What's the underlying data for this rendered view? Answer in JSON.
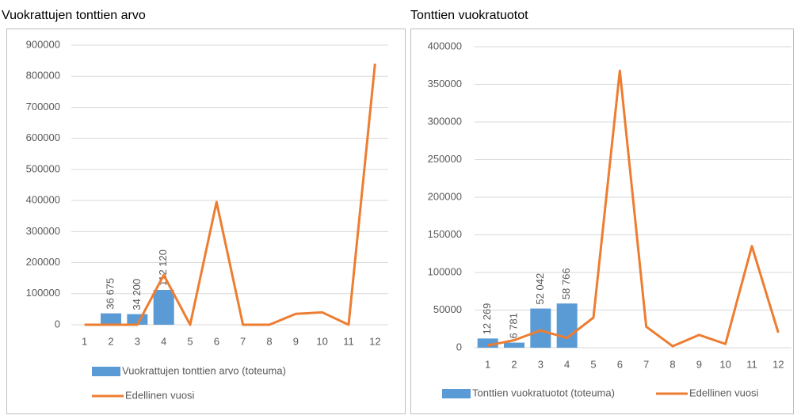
{
  "chart_data": [
    {
      "type": "bar_line",
      "title": "Vuokrattujen tonttien arvo",
      "categories": [
        1,
        2,
        3,
        4,
        5,
        6,
        7,
        8,
        9,
        10,
        11,
        12
      ],
      "series": [
        {
          "name": "Vuokrattujen tonttien arvo (toteuma)",
          "type": "bar",
          "color": "#5b9bd5",
          "values": [
            null,
            36675,
            34200,
            112120,
            null,
            null,
            null,
            null,
            null,
            null,
            null,
            null
          ],
          "value_labels": [
            null,
            "36 675",
            "34 200",
            "112 120",
            null,
            null,
            null,
            null,
            null,
            null,
            null,
            null
          ]
        },
        {
          "name": "Edellinen vuosi",
          "type": "line",
          "color": "#ed7d31",
          "values": [
            0,
            0,
            0,
            160000,
            0,
            395000,
            0,
            0,
            35000,
            40000,
            0,
            840000
          ]
        }
      ],
      "ylim": [
        0,
        900000
      ],
      "yticks": [
        0,
        100000,
        200000,
        300000,
        400000,
        500000,
        600000,
        700000,
        800000,
        900000
      ],
      "grid": true,
      "legend": "bottom"
    },
    {
      "type": "bar_line",
      "title": "Tonttien vuokratuotot",
      "categories": [
        1,
        2,
        3,
        4,
        5,
        6,
        7,
        8,
        9,
        10,
        11,
        12
      ],
      "series": [
        {
          "name": "Tonttien vuokratuotot (toteuma)",
          "type": "bar",
          "color": "#5b9bd5",
          "values": [
            12269,
            6781,
            52042,
            58766,
            null,
            null,
            null,
            null,
            null,
            null,
            null,
            null
          ],
          "value_labels": [
            "12 269",
            "6 781",
            "52 042",
            "58 766",
            null,
            null,
            null,
            null,
            null,
            null,
            null,
            null
          ]
        },
        {
          "name": "Edellinen vuosi",
          "type": "line",
          "color": "#ed7d31",
          "values": [
            3000,
            10000,
            23000,
            13000,
            40000,
            368000,
            28000,
            2000,
            17000,
            5000,
            135000,
            20000
          ]
        }
      ],
      "ylim": [
        0,
        400000
      ],
      "yticks": [
        0,
        50000,
        100000,
        150000,
        200000,
        250000,
        300000,
        350000,
        400000
      ],
      "grid": true,
      "legend": "bottom"
    }
  ]
}
